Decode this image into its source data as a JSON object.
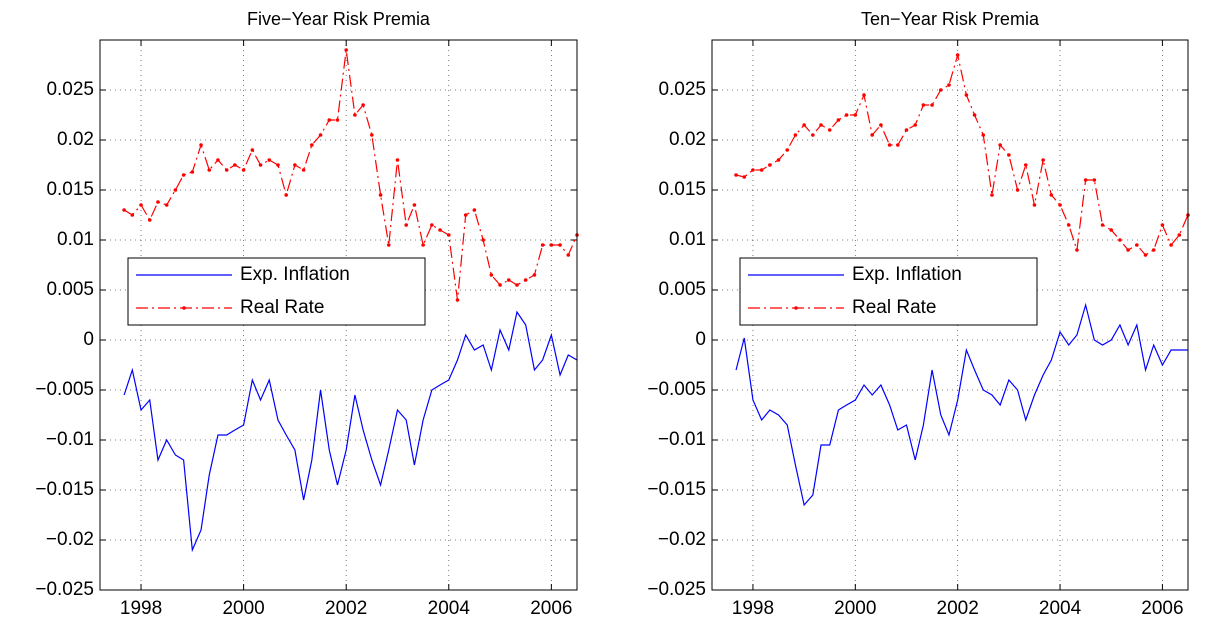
{
  "chart_data": [
    {
      "type": "line",
      "title": "Five−Year Risk Premia",
      "x": [
        1997.67,
        1997.83,
        1998.0,
        1998.17,
        1998.33,
        1998.5,
        1998.67,
        1998.83,
        1999.0,
        1999.17,
        1999.33,
        1999.5,
        1999.67,
        1999.83,
        2000.0,
        2000.17,
        2000.33,
        2000.5,
        2000.67,
        2000.83,
        2001.0,
        2001.17,
        2001.33,
        2001.5,
        2001.67,
        2001.83,
        2002.0,
        2002.17,
        2002.33,
        2002.5,
        2002.67,
        2002.83,
        2003.0,
        2003.17,
        2003.33,
        2003.5,
        2003.67,
        2003.83,
        2004.0,
        2004.17,
        2004.33,
        2004.5,
        2004.67,
        2004.83,
        2005.0,
        2005.17,
        2005.33,
        2005.5,
        2005.67,
        2005.83,
        2006.0,
        2006.17,
        2006.33,
        2006.5
      ],
      "series": [
        {
          "name": "Exp. Inflation",
          "color": "#0000ff",
          "line_style": "solid",
          "marker": "none",
          "values": [
            -0.0055,
            -0.003,
            -0.007,
            -0.006,
            -0.012,
            -0.01,
            -0.0115,
            -0.012,
            -0.021,
            -0.019,
            -0.0135,
            -0.0095,
            -0.0095,
            -0.009,
            -0.0085,
            -0.004,
            -0.006,
            -0.004,
            -0.008,
            -0.0095,
            -0.011,
            -0.016,
            -0.012,
            -0.005,
            -0.011,
            -0.0145,
            -0.011,
            -0.0055,
            -0.009,
            -0.012,
            -0.0145,
            -0.011,
            -0.007,
            -0.008,
            -0.0125,
            -0.008,
            -0.005,
            -0.0045,
            -0.004,
            -0.002,
            0.0005,
            -0.001,
            -0.0005,
            -0.003,
            0.001,
            -0.001,
            0.0028,
            0.0015,
            -0.003,
            -0.002,
            0.0005,
            -0.0035,
            -0.0015,
            -0.002
          ]
        },
        {
          "name": "Real Rate",
          "color": "#ff0000",
          "line_style": "dashdot",
          "marker": "dot",
          "values": [
            0.013,
            0.0125,
            0.0135,
            0.012,
            0.0138,
            0.0135,
            0.015,
            0.0165,
            0.0168,
            0.0195,
            0.017,
            0.018,
            0.017,
            0.0175,
            0.017,
            0.019,
            0.0175,
            0.018,
            0.0175,
            0.0145,
            0.0175,
            0.017,
            0.0195,
            0.0205,
            0.022,
            0.022,
            0.029,
            0.0225,
            0.0235,
            0.0205,
            0.0145,
            0.0095,
            0.018,
            0.0115,
            0.0135,
            0.0095,
            0.0115,
            0.011,
            0.0105,
            0.004,
            0.0125,
            0.013,
            0.01,
            0.0065,
            0.0055,
            0.006,
            0.0055,
            0.006,
            0.0065,
            0.0095,
            0.0095,
            0.0095,
            0.0085,
            0.0105
          ]
        }
      ],
      "xlim": [
        1997.2,
        2006.5
      ],
      "xticks": [
        1998,
        2000,
        2002,
        2004,
        2006
      ],
      "ylim": [
        -0.025,
        0.03
      ],
      "yticks": [
        {
          "value": -0.025,
          "label": "−0.025"
        },
        {
          "value": -0.02,
          "label": "−0.02"
        },
        {
          "value": -0.015,
          "label": "−0.015"
        },
        {
          "value": -0.01,
          "label": "−0.01"
        },
        {
          "value": -0.005,
          "label": "−0.005"
        },
        0,
        0.005,
        0.01,
        0.015,
        0.02,
        0.025
      ],
      "grid": true,
      "legend": "left"
    },
    {
      "type": "line",
      "title": "Ten−Year Risk Premia",
      "x": [
        1997.67,
        1997.83,
        1998.0,
        1998.17,
        1998.33,
        1998.5,
        1998.67,
        1998.83,
        1999.0,
        1999.17,
        1999.33,
        1999.5,
        1999.67,
        1999.83,
        2000.0,
        2000.17,
        2000.33,
        2000.5,
        2000.67,
        2000.83,
        2001.0,
        2001.17,
        2001.33,
        2001.5,
        2001.67,
        2001.83,
        2002.0,
        2002.17,
        2002.33,
        2002.5,
        2002.67,
        2002.83,
        2003.0,
        2003.17,
        2003.33,
        2003.5,
        2003.67,
        2003.83,
        2004.0,
        2004.17,
        2004.33,
        2004.5,
        2004.67,
        2004.83,
        2005.0,
        2005.17,
        2005.33,
        2005.5,
        2005.67,
        2005.83,
        2006.0,
        2006.17,
        2006.33,
        2006.5
      ],
      "series": [
        {
          "name": "Exp. Inflation",
          "color": "#0000ff",
          "line_style": "solid",
          "marker": "none",
          "values": [
            -0.003,
            0.0002,
            -0.006,
            -0.008,
            -0.007,
            -0.0075,
            -0.0085,
            -0.0125,
            -0.0165,
            -0.0155,
            -0.0105,
            -0.0105,
            -0.007,
            -0.0065,
            -0.006,
            -0.0045,
            -0.0055,
            -0.0045,
            -0.0065,
            -0.009,
            -0.0085,
            -0.012,
            -0.0085,
            -0.003,
            -0.0075,
            -0.0095,
            -0.006,
            -0.001,
            -0.003,
            -0.005,
            -0.0055,
            -0.0065,
            -0.004,
            -0.005,
            -0.008,
            -0.0055,
            -0.0035,
            -0.002,
            0.0008,
            -0.0005,
            0.0005,
            0.0035,
            0.0,
            -0.0005,
            0.0,
            0.0015,
            -0.0005,
            0.0015,
            -0.003,
            -0.0005,
            -0.0025,
            -0.001,
            -0.001,
            -0.001
          ]
        },
        {
          "name": "Real Rate",
          "color": "#ff0000",
          "line_style": "dashdot",
          "marker": "dot",
          "values": [
            0.0165,
            0.0163,
            0.017,
            0.017,
            0.0175,
            0.018,
            0.019,
            0.0205,
            0.0215,
            0.0205,
            0.0215,
            0.021,
            0.022,
            0.0225,
            0.0225,
            0.0245,
            0.0205,
            0.0215,
            0.0195,
            0.0195,
            0.021,
            0.0215,
            0.0235,
            0.0235,
            0.025,
            0.0255,
            0.0285,
            0.0245,
            0.0225,
            0.0205,
            0.0145,
            0.0195,
            0.0185,
            0.015,
            0.0175,
            0.0135,
            0.018,
            0.0145,
            0.0135,
            0.0115,
            0.009,
            0.016,
            0.016,
            0.0115,
            0.011,
            0.01,
            0.009,
            0.0095,
            0.0085,
            0.009,
            0.0115,
            0.0095,
            0.0105,
            0.0125
          ]
        }
      ],
      "xlim": [
        1997.2,
        2006.5
      ],
      "xticks": [
        1998,
        2000,
        2002,
        2004,
        2006
      ],
      "ylim": [
        -0.025,
        0.03
      ],
      "yticks": [
        {
          "value": -0.025,
          "label": "−0.025"
        },
        {
          "value": -0.02,
          "label": "−0.02"
        },
        {
          "value": -0.015,
          "label": "−0.015"
        },
        {
          "value": -0.01,
          "label": "−0.01"
        },
        {
          "value": -0.005,
          "label": "−0.005"
        },
        0,
        0.005,
        0.01,
        0.015,
        0.02,
        0.025
      ],
      "grid": true,
      "legend": "left"
    }
  ]
}
